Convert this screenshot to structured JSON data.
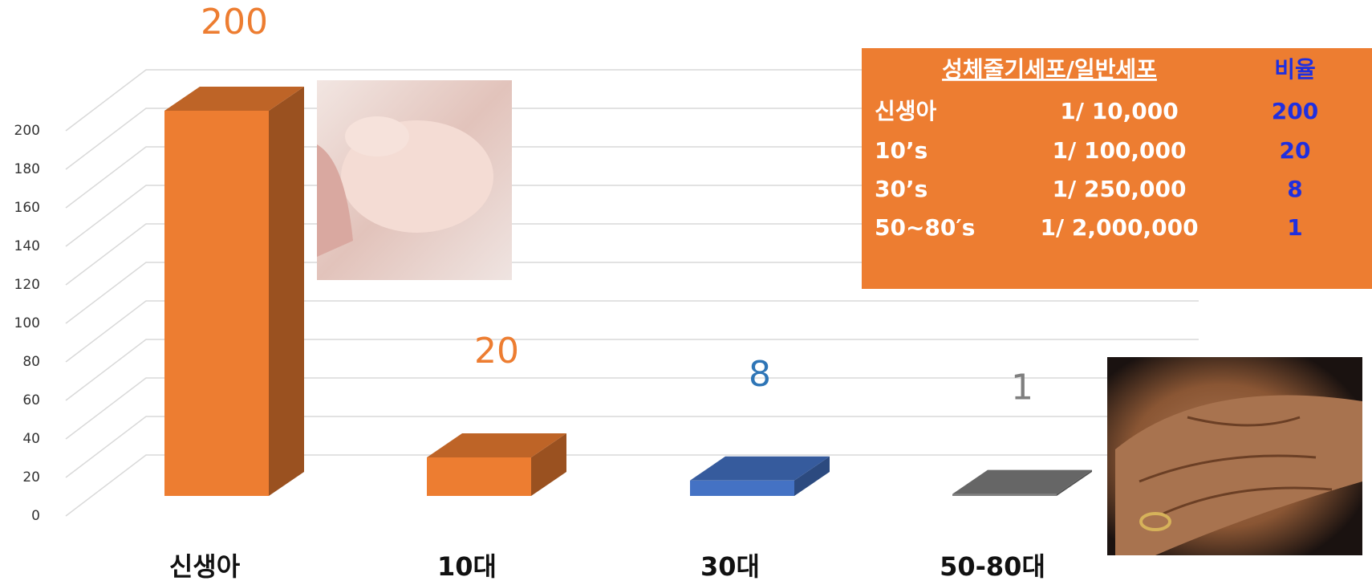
{
  "chart_data": {
    "type": "bar3d",
    "categories": [
      "신생아",
      "10대",
      "30대",
      "50-80대"
    ],
    "values": [
      200,
      20,
      8,
      1
    ],
    "colors": [
      "#ed7d31",
      "#ed7d31",
      "#4472c4",
      "#7f7f7f"
    ],
    "label_colors": [
      "#ed7d31",
      "#ed7d31",
      "#2e75b6",
      "#7f7f7f"
    ],
    "ylim": [
      0,
      200
    ],
    "yticks": [
      0,
      20,
      40,
      60,
      80,
      100,
      120,
      140,
      160,
      180,
      200
    ],
    "grid": true
  },
  "table": {
    "header": [
      "성체줄기세포/일반세포",
      "비율"
    ],
    "rows": [
      [
        "신생아",
        "1/ 10,000",
        "200"
      ],
      [
        "10’s",
        "1/ 100,000",
        "20"
      ],
      [
        "30’s",
        "1/ 250,000",
        "8"
      ],
      [
        "50~80′s",
        "1/ 2,000,000",
        "1"
      ]
    ]
  }
}
